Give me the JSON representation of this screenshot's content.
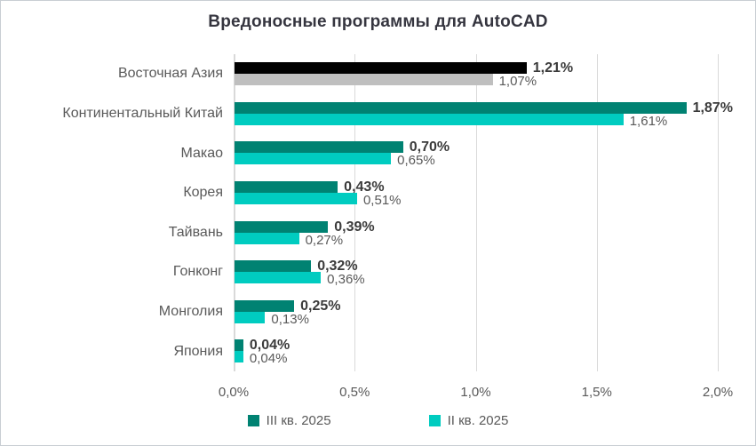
{
  "chart_data": {
    "type": "bar",
    "orientation": "horizontal",
    "title": "Вредоносные программы для AutoCAD",
    "categories": [
      "Восточная Азия",
      "Континентальный Китай",
      "Макао",
      "Корея",
      "Тайвань",
      "Гонконг",
      "Монголия",
      "Япония"
    ],
    "series": [
      {
        "name": "III кв. 2025",
        "color": "#008272",
        "highlight_color": "#000000",
        "values": [
          1.21,
          1.87,
          0.7,
          0.43,
          0.39,
          0.32,
          0.25,
          0.04
        ],
        "labels": [
          "1,21%",
          "1,87%",
          "0,70%",
          "0,43%",
          "0,39%",
          "0,32%",
          "0,25%",
          "0,04%"
        ]
      },
      {
        "name": "II кв. 2025",
        "color": "#00ccc0",
        "highlight_color": "#bfbfbf",
        "values": [
          1.07,
          1.61,
          0.65,
          0.51,
          0.27,
          0.36,
          0.13,
          0.04
        ],
        "labels": [
          "1,07%",
          "1,61%",
          "0,65%",
          "0,51%",
          "0,27%",
          "0,36%",
          "0,13%",
          "0,04%"
        ]
      }
    ],
    "highlight_category_index": 0,
    "x_ticks": [
      {
        "label": "0,0%",
        "value": 0.0
      },
      {
        "label": "0,5%",
        "value": 0.5
      },
      {
        "label": "1,0%",
        "value": 1.0
      },
      {
        "label": "1,5%",
        "value": 1.5
      },
      {
        "label": "2,0%",
        "value": 2.0
      }
    ],
    "xlim": [
      0.0,
      2.0
    ],
    "grid": "vertical",
    "legend_position": "bottom",
    "colors": {
      "gridline": "#d9d9d9",
      "title_text": "#35353f",
      "category_text": "#595959",
      "value_bold_text": "#3b3b3b",
      "value_regular_text": "#595959"
    }
  }
}
